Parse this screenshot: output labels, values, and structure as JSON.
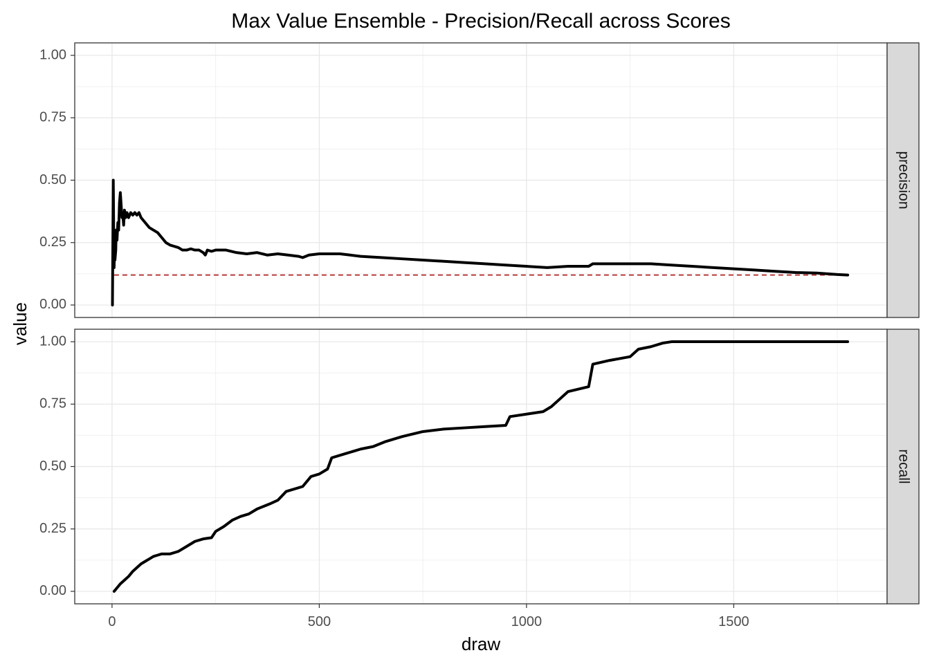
{
  "chart_data": {
    "type": "line",
    "title": "Max Value Ensemble - Precision/Recall across Scores",
    "xlabel": "draw",
    "ylabel": "value",
    "xlim": [
      -90,
      1870
    ],
    "x_ticks": [
      0,
      500,
      1000,
      1500
    ],
    "x_tick_labels": [
      "0",
      "500",
      "1000",
      "1500"
    ],
    "grid": true,
    "panels": [
      {
        "strip": "precision",
        "ylim": [
          -0.05,
          1.05
        ],
        "y_ticks": [
          0,
          0.25,
          0.5,
          0.75,
          1.0
        ],
        "y_tick_labels": [
          "0.00",
          "0.25",
          "0.50",
          "0.75",
          "1.00"
        ],
        "baseline": {
          "value": 0.12,
          "x": [
            5,
            1775
          ],
          "color": "#b22222",
          "style": "dashed"
        },
        "series": [
          {
            "color": "#000000",
            "x": [
              1,
              2,
              3,
              4,
              5,
              6,
              7,
              8,
              9,
              10,
              12,
              14,
              16,
              18,
              20,
              22,
              24,
              26,
              28,
              30,
              33,
              36,
              40,
              45,
              50,
              55,
              60,
              65,
              70,
              75,
              80,
              90,
              100,
              110,
              120,
              130,
              140,
              150,
              160,
              170,
              180,
              190,
              200,
              210,
              220,
              225,
              230,
              240,
              250,
              275,
              300,
              325,
              350,
              375,
              400,
              425,
              450,
              460,
              475,
              500,
              525,
              550,
              575,
              600,
              650,
              700,
              750,
              800,
              850,
              900,
              950,
              1000,
              1050,
              1100,
              1150,
              1160,
              1200,
              1250,
              1300,
              1350,
              1400,
              1450,
              1500,
              1550,
              1600,
              1650,
              1700,
              1750,
              1775
            ],
            "values": [
              0.0,
              0.25,
              0.5,
              0.3,
              0.15,
              0.25,
              0.18,
              0.2,
              0.22,
              0.3,
              0.26,
              0.33,
              0.3,
              0.41,
              0.45,
              0.4,
              0.35,
              0.36,
              0.32,
              0.38,
              0.35,
              0.37,
              0.35,
              0.37,
              0.36,
              0.37,
              0.36,
              0.37,
              0.35,
              0.34,
              0.33,
              0.31,
              0.3,
              0.29,
              0.27,
              0.25,
              0.24,
              0.235,
              0.23,
              0.22,
              0.22,
              0.225,
              0.22,
              0.22,
              0.21,
              0.2,
              0.22,
              0.215,
              0.22,
              0.22,
              0.21,
              0.205,
              0.21,
              0.2,
              0.205,
              0.2,
              0.195,
              0.19,
              0.2,
              0.205,
              0.205,
              0.205,
              0.2,
              0.195,
              0.19,
              0.185,
              0.18,
              0.175,
              0.17,
              0.165,
              0.16,
              0.155,
              0.15,
              0.155,
              0.155,
              0.165,
              0.165,
              0.165,
              0.165,
              0.16,
              0.155,
              0.15,
              0.145,
              0.14,
              0.135,
              0.13,
              0.128,
              0.122,
              0.12
            ]
          }
        ]
      },
      {
        "strip": "recall",
        "ylim": [
          -0.05,
          1.05
        ],
        "y_ticks": [
          0,
          0.25,
          0.5,
          0.75,
          1.0
        ],
        "y_tick_labels": [
          "0.00",
          "0.25",
          "0.50",
          "0.75",
          "1.00"
        ],
        "series": [
          {
            "color": "#000000",
            "x": [
              5,
              10,
              20,
              30,
              40,
              50,
              60,
              70,
              80,
              90,
              100,
              110,
              120,
              140,
              160,
              180,
              200,
              220,
              240,
              250,
              270,
              290,
              310,
              330,
              350,
              380,
              400,
              420,
              460,
              480,
              500,
              520,
              530,
              560,
              600,
              630,
              660,
              700,
              750,
              800,
              850,
              900,
              950,
              960,
              1000,
              1040,
              1060,
              1080,
              1100,
              1150,
              1160,
              1200,
              1250,
              1270,
              1300,
              1330,
              1350,
              1400,
              1500,
              1600,
              1700,
              1775
            ],
            "values": [
              0.0,
              0.01,
              0.03,
              0.045,
              0.06,
              0.08,
              0.095,
              0.11,
              0.12,
              0.13,
              0.14,
              0.145,
              0.15,
              0.15,
              0.16,
              0.18,
              0.2,
              0.21,
              0.215,
              0.24,
              0.26,
              0.285,
              0.3,
              0.31,
              0.33,
              0.35,
              0.365,
              0.4,
              0.42,
              0.46,
              0.47,
              0.49,
              0.535,
              0.55,
              0.57,
              0.58,
              0.6,
              0.62,
              0.64,
              0.65,
              0.655,
              0.66,
              0.665,
              0.7,
              0.71,
              0.72,
              0.74,
              0.77,
              0.8,
              0.82,
              0.91,
              0.925,
              0.94,
              0.97,
              0.98,
              0.995,
              1.0,
              1.0,
              1.0,
              1.0,
              1.0,
              1.0
            ]
          }
        ]
      }
    ]
  }
}
